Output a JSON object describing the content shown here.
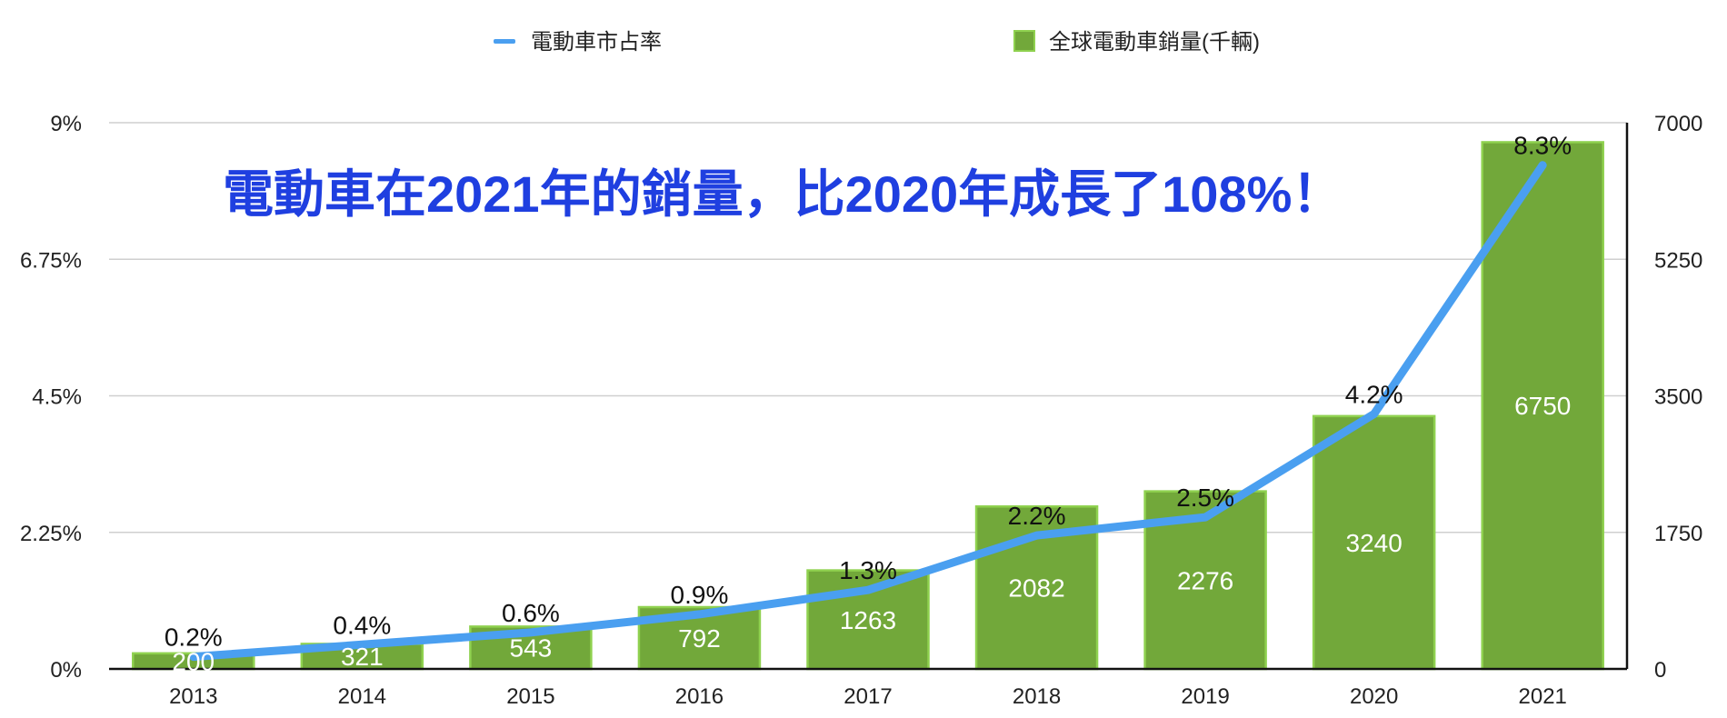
{
  "chart_data": {
    "type": "bar",
    "headline": "電動車在2021年的銷量，比2020年成長了108%！",
    "categories": [
      "2013",
      "2014",
      "2015",
      "2016",
      "2017",
      "2018",
      "2019",
      "2020",
      "2021"
    ],
    "series": [
      {
        "name": "全球電動車銷量(千輛)",
        "kind": "bar",
        "axis": "right",
        "color": "#72a83a",
        "border_color": "#8fd14f",
        "values": [
          200,
          321,
          543,
          792,
          1263,
          2082,
          2276,
          3240,
          6750
        ],
        "labels": [
          "200",
          "321",
          "543",
          "792",
          "1263",
          "2082",
          "2276",
          "3240",
          "6750"
        ]
      },
      {
        "name": "電動車市占率",
        "kind": "line",
        "axis": "left",
        "color": "#4a9ff0",
        "values": [
          0.2,
          0.4,
          0.6,
          0.9,
          1.3,
          2.2,
          2.5,
          4.2,
          8.3
        ],
        "labels": [
          "0.2%",
          "0.4%",
          "0.6%",
          "0.9%",
          "1.3%",
          "2.2%",
          "2.5%",
          "4.2%",
          "8.3%"
        ]
      }
    ],
    "y_left": {
      "ylim": [
        0,
        9
      ],
      "ticks": [
        "0%",
        "2.25%",
        "4.5%",
        "6.75%",
        "9%"
      ]
    },
    "y_right": {
      "ylim": [
        0,
        7000
      ],
      "ticks": [
        "0",
        "1750",
        "3500",
        "5250",
        "7000"
      ]
    },
    "grid": true,
    "legend_position": "top-center"
  }
}
